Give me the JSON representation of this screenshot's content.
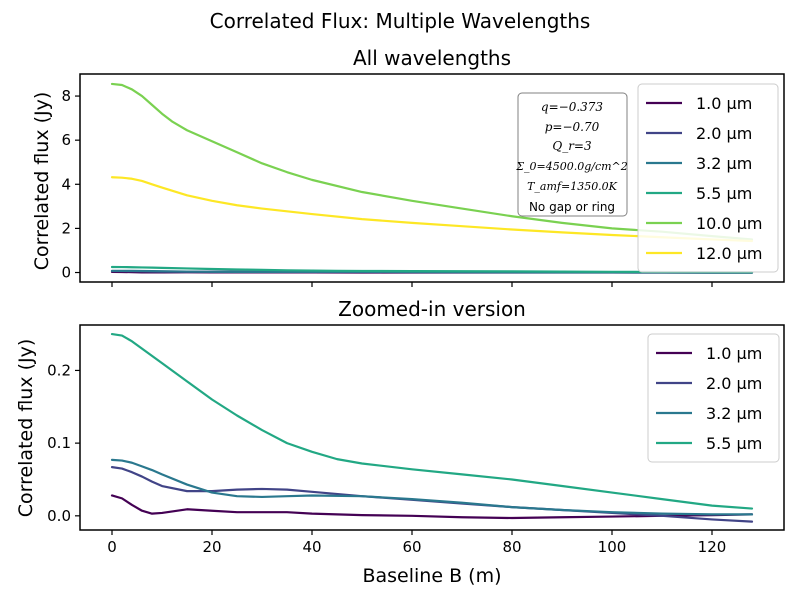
{
  "suptitle": "Correlated Flux: Multiple Wavelengths",
  "xlabel": "Baseline B (m)",
  "param_box": {
    "lines": [
      "q=−0.373",
      "p=−0.70",
      "Q_r=3",
      "Σ_0=4500.0g/cm^2",
      "T_amf=1350.0K",
      "No gap or ring"
    ]
  },
  "chart_data": [
    {
      "type": "line",
      "title": "All wavelengths",
      "xlabel": "",
      "ylabel": "Correlated flux (Jy)",
      "xlim": [
        -6.4,
        134.4
      ],
      "ylim": [
        -0.43,
        9.0
      ],
      "xticks": [
        0,
        20,
        40,
        60,
        80,
        100,
        120
      ],
      "yticks": [
        0,
        2,
        4,
        6,
        8
      ],
      "ytick_labels": [
        "0",
        "2",
        "4",
        "6",
        "8"
      ],
      "grid": false,
      "legend_position": "top-right",
      "series": [
        {
          "name": "1.0 μm",
          "color": "#440154",
          "x": [
            0,
            2,
            4,
            6,
            8,
            10,
            15,
            20,
            25,
            30,
            35,
            40,
            50,
            60,
            70,
            80,
            90,
            100,
            110,
            120,
            128
          ],
          "y": [
            0.028,
            0.024,
            0.015,
            0.007,
            0.003,
            0.004,
            0.009,
            0.007,
            0.005,
            0.005,
            0.005,
            0.003,
            0.001,
            0.0,
            -0.002,
            -0.003,
            -0.002,
            -0.001,
            0.0,
            0.001,
            0.002
          ]
        },
        {
          "name": "2.0 μm",
          "color": "#414487",
          "x": [
            0,
            2,
            4,
            6,
            8,
            10,
            15,
            20,
            25,
            30,
            35,
            40,
            50,
            60,
            70,
            80,
            90,
            100,
            110,
            120,
            128
          ],
          "y": [
            0.067,
            0.065,
            0.06,
            0.054,
            0.047,
            0.041,
            0.034,
            0.034,
            0.036,
            0.037,
            0.036,
            0.033,
            0.027,
            0.022,
            0.017,
            0.012,
            0.008,
            0.004,
            0.0,
            -0.005,
            -0.008
          ]
        },
        {
          "name": "3.2 μm",
          "color": "#2a788e",
          "x": [
            0,
            2,
            4,
            6,
            8,
            10,
            15,
            20,
            25,
            30,
            35,
            40,
            50,
            60,
            70,
            80,
            90,
            100,
            110,
            120,
            128
          ],
          "y": [
            0.077,
            0.076,
            0.073,
            0.068,
            0.063,
            0.057,
            0.043,
            0.032,
            0.027,
            0.026,
            0.027,
            0.028,
            0.027,
            0.023,
            0.018,
            0.012,
            0.008,
            0.005,
            0.003,
            0.002,
            0.002
          ]
        },
        {
          "name": "5.5 μm",
          "color": "#22a884",
          "x": [
            0,
            2,
            4,
            6,
            8,
            10,
            15,
            20,
            25,
            30,
            35,
            40,
            45,
            50,
            60,
            70,
            80,
            90,
            100,
            110,
            120,
            128
          ],
          "y": [
            0.25,
            0.248,
            0.24,
            0.23,
            0.22,
            0.21,
            0.185,
            0.16,
            0.138,
            0.118,
            0.1,
            0.088,
            0.078,
            0.072,
            0.064,
            0.057,
            0.05,
            0.041,
            0.032,
            0.023,
            0.014,
            0.01
          ]
        },
        {
          "name": "10.0 μm",
          "color": "#7ad151",
          "x": [
            0,
            2,
            4,
            6,
            8,
            10,
            12,
            15,
            20,
            25,
            30,
            35,
            40,
            50,
            60,
            70,
            80,
            90,
            100,
            110,
            120,
            128
          ],
          "y": [
            8.55,
            8.5,
            8.3,
            8.0,
            7.6,
            7.2,
            6.85,
            6.45,
            5.95,
            5.45,
            4.95,
            4.55,
            4.2,
            3.65,
            3.25,
            2.9,
            2.55,
            2.25,
            2.0,
            1.85,
            1.65,
            1.5
          ]
        },
        {
          "name": "12.0 μm",
          "color": "#fde725",
          "x": [
            0,
            2,
            4,
            6,
            8,
            10,
            15,
            20,
            25,
            30,
            40,
            50,
            60,
            70,
            80,
            90,
            100,
            110,
            120,
            128
          ],
          "y": [
            4.32,
            4.3,
            4.25,
            4.15,
            4.0,
            3.85,
            3.5,
            3.25,
            3.05,
            2.9,
            2.65,
            2.42,
            2.25,
            2.1,
            1.95,
            1.82,
            1.7,
            1.6,
            1.5,
            1.43
          ]
        }
      ]
    },
    {
      "type": "line",
      "title": "Zoomed-in version",
      "xlabel": "Baseline B (m)",
      "ylabel": "Correlated flux (Jy)",
      "xlim": [
        -6.4,
        134.4
      ],
      "ylim": [
        -0.0195,
        0.2625
      ],
      "xticks": [
        0,
        20,
        40,
        60,
        80,
        100,
        120
      ],
      "yticks": [
        0.0,
        0.1,
        0.2
      ],
      "ytick_labels": [
        "0.0",
        "0.1",
        "0.2"
      ],
      "grid": false,
      "legend_position": "top-right",
      "series": [
        {
          "name": "1.0 μm",
          "color": "#440154",
          "x": [
            0,
            2,
            4,
            6,
            8,
            10,
            15,
            20,
            25,
            30,
            35,
            40,
            50,
            60,
            70,
            80,
            90,
            100,
            110,
            120,
            128
          ],
          "y": [
            0.028,
            0.024,
            0.015,
            0.007,
            0.003,
            0.004,
            0.009,
            0.007,
            0.005,
            0.005,
            0.005,
            0.003,
            0.001,
            0.0,
            -0.002,
            -0.003,
            -0.002,
            -0.001,
            0.0,
            0.001,
            0.002
          ]
        },
        {
          "name": "2.0 μm",
          "color": "#414487",
          "x": [
            0,
            2,
            4,
            6,
            8,
            10,
            15,
            20,
            25,
            30,
            35,
            40,
            50,
            60,
            70,
            80,
            90,
            100,
            110,
            120,
            128
          ],
          "y": [
            0.067,
            0.065,
            0.06,
            0.054,
            0.047,
            0.041,
            0.034,
            0.034,
            0.036,
            0.037,
            0.036,
            0.033,
            0.027,
            0.022,
            0.017,
            0.012,
            0.008,
            0.004,
            0.0,
            -0.005,
            -0.008
          ]
        },
        {
          "name": "3.2 μm",
          "color": "#2a788e",
          "x": [
            0,
            2,
            4,
            6,
            8,
            10,
            15,
            20,
            25,
            30,
            35,
            40,
            50,
            60,
            70,
            80,
            90,
            100,
            110,
            120,
            128
          ],
          "y": [
            0.077,
            0.076,
            0.073,
            0.068,
            0.063,
            0.057,
            0.043,
            0.032,
            0.027,
            0.026,
            0.027,
            0.028,
            0.027,
            0.023,
            0.018,
            0.012,
            0.008,
            0.005,
            0.003,
            0.002,
            0.002
          ]
        },
        {
          "name": "5.5 μm",
          "color": "#22a884",
          "x": [
            0,
            2,
            4,
            6,
            8,
            10,
            15,
            20,
            25,
            30,
            35,
            40,
            45,
            50,
            60,
            70,
            80,
            90,
            100,
            110,
            120,
            128
          ],
          "y": [
            0.25,
            0.248,
            0.24,
            0.23,
            0.22,
            0.21,
            0.185,
            0.16,
            0.138,
            0.118,
            0.1,
            0.088,
            0.078,
            0.072,
            0.064,
            0.057,
            0.05,
            0.041,
            0.032,
            0.023,
            0.014,
            0.01
          ]
        }
      ]
    }
  ]
}
